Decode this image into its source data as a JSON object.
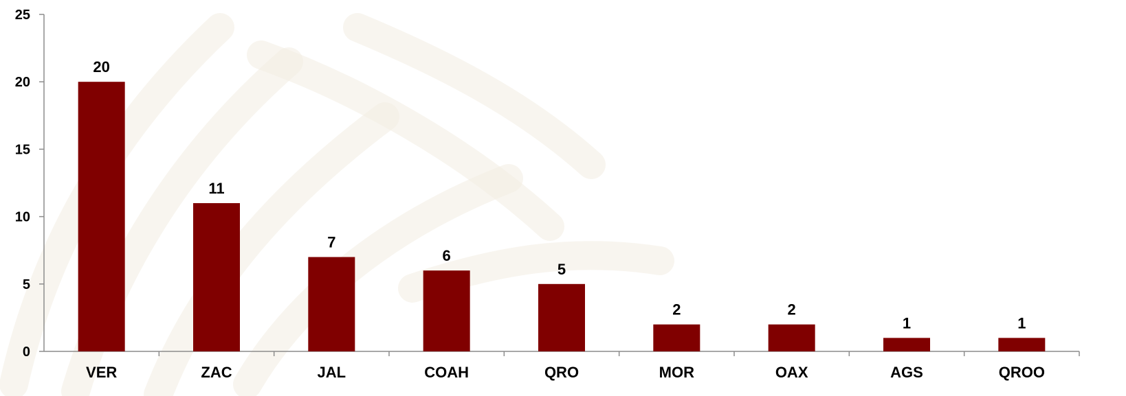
{
  "chart_data": {
    "type": "bar",
    "title": "",
    "xlabel": "",
    "ylabel": "",
    "categories": [
      "VER",
      "ZAC",
      "JAL",
      "COAH",
      "QRO",
      "MOR",
      "OAX",
      "AGS",
      "QROO"
    ],
    "values": [
      20,
      11,
      7,
      6,
      5,
      2,
      2,
      1,
      1
    ],
    "data_labels": [
      "20",
      "11",
      "7",
      "6",
      "5",
      "2",
      "2",
      "1",
      "1"
    ],
    "ylim": [
      0,
      25
    ],
    "yticks": [
      0,
      5,
      10,
      15,
      20,
      25
    ],
    "ytick_labels": [
      "0",
      "5",
      "10",
      "15",
      "20",
      "25"
    ],
    "grid": false,
    "legend": "none",
    "colors": {
      "bar": "#800000",
      "axis": "#8c8c8c",
      "background": "#ffffff",
      "watermark": "#f3ece2"
    }
  }
}
